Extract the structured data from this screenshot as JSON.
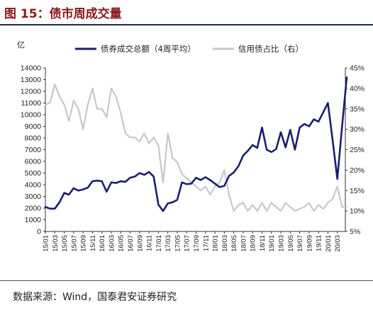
{
  "header": {
    "title": "图 15：债市周成交量"
  },
  "footer": {
    "source": "数据来源：Wind，国泰君安证券研究"
  },
  "chart_data": {
    "type": "line",
    "title": "",
    "y_unit": "亿",
    "ylim_left": [
      0,
      14000
    ],
    "ylim_right": [
      5,
      45
    ],
    "y_ticks_left": [
      "0",
      "1000",
      "2000",
      "3000",
      "4000",
      "5000",
      "6000",
      "7000",
      "8000",
      "9000",
      "10000",
      "11000",
      "12000",
      "13000",
      "14000"
    ],
    "y_ticks_right": [
      "5%",
      "10%",
      "15%",
      "20%",
      "25%",
      "30%",
      "35%",
      "40%",
      "45%"
    ],
    "x_ticks": [
      "15/01",
      "15/03",
      "15/05",
      "15/07",
      "15/09",
      "15/11",
      "16/01",
      "16/03",
      "16/05",
      "16/07",
      "16/09",
      "16/11",
      "17/01",
      "17/03",
      "17/05",
      "17/07",
      "17/09",
      "17/11",
      "18/01",
      "18/03",
      "18/05",
      "18/07",
      "18/09",
      "18/11",
      "19/01",
      "19/03",
      "19/05",
      "19/07",
      "19/09",
      "19/11",
      "20/01",
      "20/03"
    ],
    "grid": false,
    "legend": "top",
    "series": [
      {
        "name": "债券成交总额（4周平均）",
        "axis": "left",
        "color": "#1b1f6e",
        "points": [
          [
            "15/01",
            2100
          ],
          [
            "15/02",
            1950
          ],
          [
            "15/03",
            1950
          ],
          [
            "15/04",
            2500
          ],
          [
            "15/05",
            3300
          ],
          [
            "15/06",
            3150
          ],
          [
            "15/07",
            3700
          ],
          [
            "15/08",
            3500
          ],
          [
            "15/09",
            3600
          ],
          [
            "15/10",
            3750
          ],
          [
            "15/11",
            4300
          ],
          [
            "15/12",
            4350
          ],
          [
            "16/01",
            4300
          ],
          [
            "16/02",
            3400
          ],
          [
            "16/03",
            4200
          ],
          [
            "16/04",
            4150
          ],
          [
            "16/05",
            4300
          ],
          [
            "16/06",
            4250
          ],
          [
            "16/07",
            4600
          ],
          [
            "16/08",
            4700
          ],
          [
            "16/09",
            5000
          ],
          [
            "16/10",
            4850
          ],
          [
            "16/11",
            5100
          ],
          [
            "16/12",
            4700
          ],
          [
            "17/01",
            2300
          ],
          [
            "17/02",
            1750
          ],
          [
            "17/03",
            2400
          ],
          [
            "17/04",
            2500
          ],
          [
            "17/05",
            2700
          ],
          [
            "17/06",
            4200
          ],
          [
            "17/07",
            4050
          ],
          [
            "17/08",
            4100
          ],
          [
            "17/09",
            4600
          ],
          [
            "17/10",
            4400
          ],
          [
            "17/11",
            4650
          ],
          [
            "17/12",
            4400
          ],
          [
            "18/01",
            4100
          ],
          [
            "18/02",
            3800
          ],
          [
            "18/03",
            3900
          ],
          [
            "18/04",
            4750
          ],
          [
            "18/05",
            5050
          ],
          [
            "18/06",
            5600
          ],
          [
            "18/07",
            6500
          ],
          [
            "18/08",
            6900
          ],
          [
            "18/09",
            7400
          ],
          [
            "18/10",
            7150
          ],
          [
            "18/11",
            8900
          ],
          [
            "18/12",
            7000
          ],
          [
            "19/01",
            6800
          ],
          [
            "19/02",
            7050
          ],
          [
            "19/03",
            8500
          ],
          [
            "19/04",
            7200
          ],
          [
            "19/05",
            8700
          ],
          [
            "19/06",
            7000
          ],
          [
            "19/07",
            8900
          ],
          [
            "19/08",
            9200
          ],
          [
            "19/09",
            9000
          ],
          [
            "19/10",
            9600
          ],
          [
            "19/11",
            9400
          ],
          [
            "19/12",
            10200
          ],
          [
            "20/01",
            11000
          ],
          [
            "20/02",
            7800
          ],
          [
            "20/03",
            4500
          ],
          [
            "20/04",
            9000
          ],
          [
            "20/05",
            13200
          ]
        ]
      },
      {
        "name": "信用债占比（右）",
        "axis": "right",
        "color": "#c8c8c8",
        "points": [
          [
            "15/01",
            36
          ],
          [
            "15/02",
            36.5
          ],
          [
            "15/03",
            41
          ],
          [
            "15/04",
            38
          ],
          [
            "15/05",
            36
          ],
          [
            "15/06",
            32
          ],
          [
            "15/07",
            37
          ],
          [
            "15/08",
            35
          ],
          [
            "15/09",
            30
          ],
          [
            "15/10",
            36
          ],
          [
            "15/11",
            40
          ],
          [
            "15/12",
            35
          ],
          [
            "16/01",
            35
          ],
          [
            "16/02",
            33
          ],
          [
            "16/03",
            40
          ],
          [
            "16/04",
            38
          ],
          [
            "16/05",
            34
          ],
          [
            "16/06",
            29
          ],
          [
            "16/07",
            28
          ],
          [
            "16/08",
            28
          ],
          [
            "16/09",
            27
          ],
          [
            "16/10",
            29
          ],
          [
            "16/11",
            26.5
          ],
          [
            "16/12",
            28
          ],
          [
            "17/01",
            26
          ],
          [
            "17/02",
            17
          ],
          [
            "17/03",
            29
          ],
          [
            "17/04",
            23
          ],
          [
            "17/05",
            22
          ],
          [
            "17/06",
            19
          ],
          [
            "17/07",
            18
          ],
          [
            "17/08",
            17
          ],
          [
            "17/09",
            16
          ],
          [
            "17/10",
            15
          ],
          [
            "17/11",
            16
          ],
          [
            "17/12",
            14
          ],
          [
            "18/01",
            16
          ],
          [
            "18/02",
            17
          ],
          [
            "18/03",
            20
          ],
          [
            "18/04",
            14
          ],
          [
            "18/05",
            10
          ],
          [
            "18/06",
            11.5
          ],
          [
            "18/07",
            12
          ],
          [
            "18/08",
            10
          ],
          [
            "18/09",
            11.5
          ],
          [
            "18/10",
            10
          ],
          [
            "18/11",
            12
          ],
          [
            "18/12",
            10
          ],
          [
            "19/01",
            12
          ],
          [
            "19/02",
            11
          ],
          [
            "19/03",
            10
          ],
          [
            "19/04",
            12
          ],
          [
            "19/05",
            11
          ],
          [
            "19/06",
            10
          ],
          [
            "19/07",
            10.5
          ],
          [
            "19/08",
            11
          ],
          [
            "19/09",
            12
          ],
          [
            "19/10",
            10
          ],
          [
            "19/11",
            11.5
          ],
          [
            "19/12",
            10.5
          ],
          [
            "20/01",
            12
          ],
          [
            "20/02",
            13
          ],
          [
            "20/03",
            16
          ],
          [
            "20/04",
            11
          ],
          [
            "20/05",
            11
          ]
        ]
      }
    ]
  }
}
